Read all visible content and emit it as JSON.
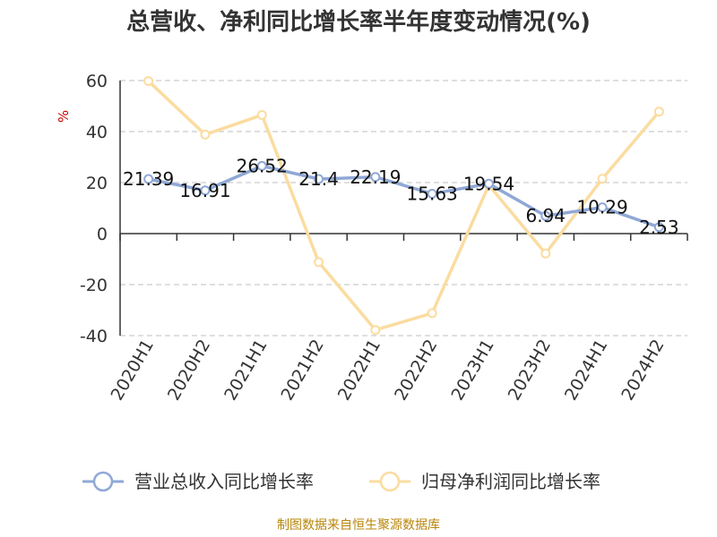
{
  "chart_data": {
    "type": "line",
    "title": "总营收、净利同比增长率半年度变动情况(%)",
    "ylabel": "%",
    "ylim": [
      -40,
      60
    ],
    "yticks": [
      60,
      40,
      20,
      0,
      -20,
      -40
    ],
    "grid": true,
    "legend_position": "bottom",
    "categories": [
      "2020H1",
      "2020H2",
      "2021H1",
      "2021H2",
      "2022H1",
      "2022H2",
      "2023H1",
      "2023H2",
      "2024H1",
      "2024H2"
    ],
    "series": [
      {
        "name": "营业总收入同比增长率",
        "color": "#8fa8d6",
        "values": [
          21.39,
          16.91,
          26.52,
          21.4,
          22.19,
          15.63,
          19.54,
          6.94,
          10.29,
          2.53
        ],
        "labels": [
          "21.39",
          "16.91",
          "26.52",
          "21.4",
          "22.19",
          "15.63",
          "19.54",
          "6.94",
          "10.29",
          "2.53"
        ]
      },
      {
        "name": "归母净利润同比增长率",
        "color": "#fbdca0",
        "values": [
          59.8,
          38.8,
          46.5,
          -11.2,
          -37.8,
          -31.2,
          19.0,
          -7.8,
          21.5,
          47.8
        ]
      }
    ],
    "source": "制图数据来自恒生聚源数据库"
  }
}
